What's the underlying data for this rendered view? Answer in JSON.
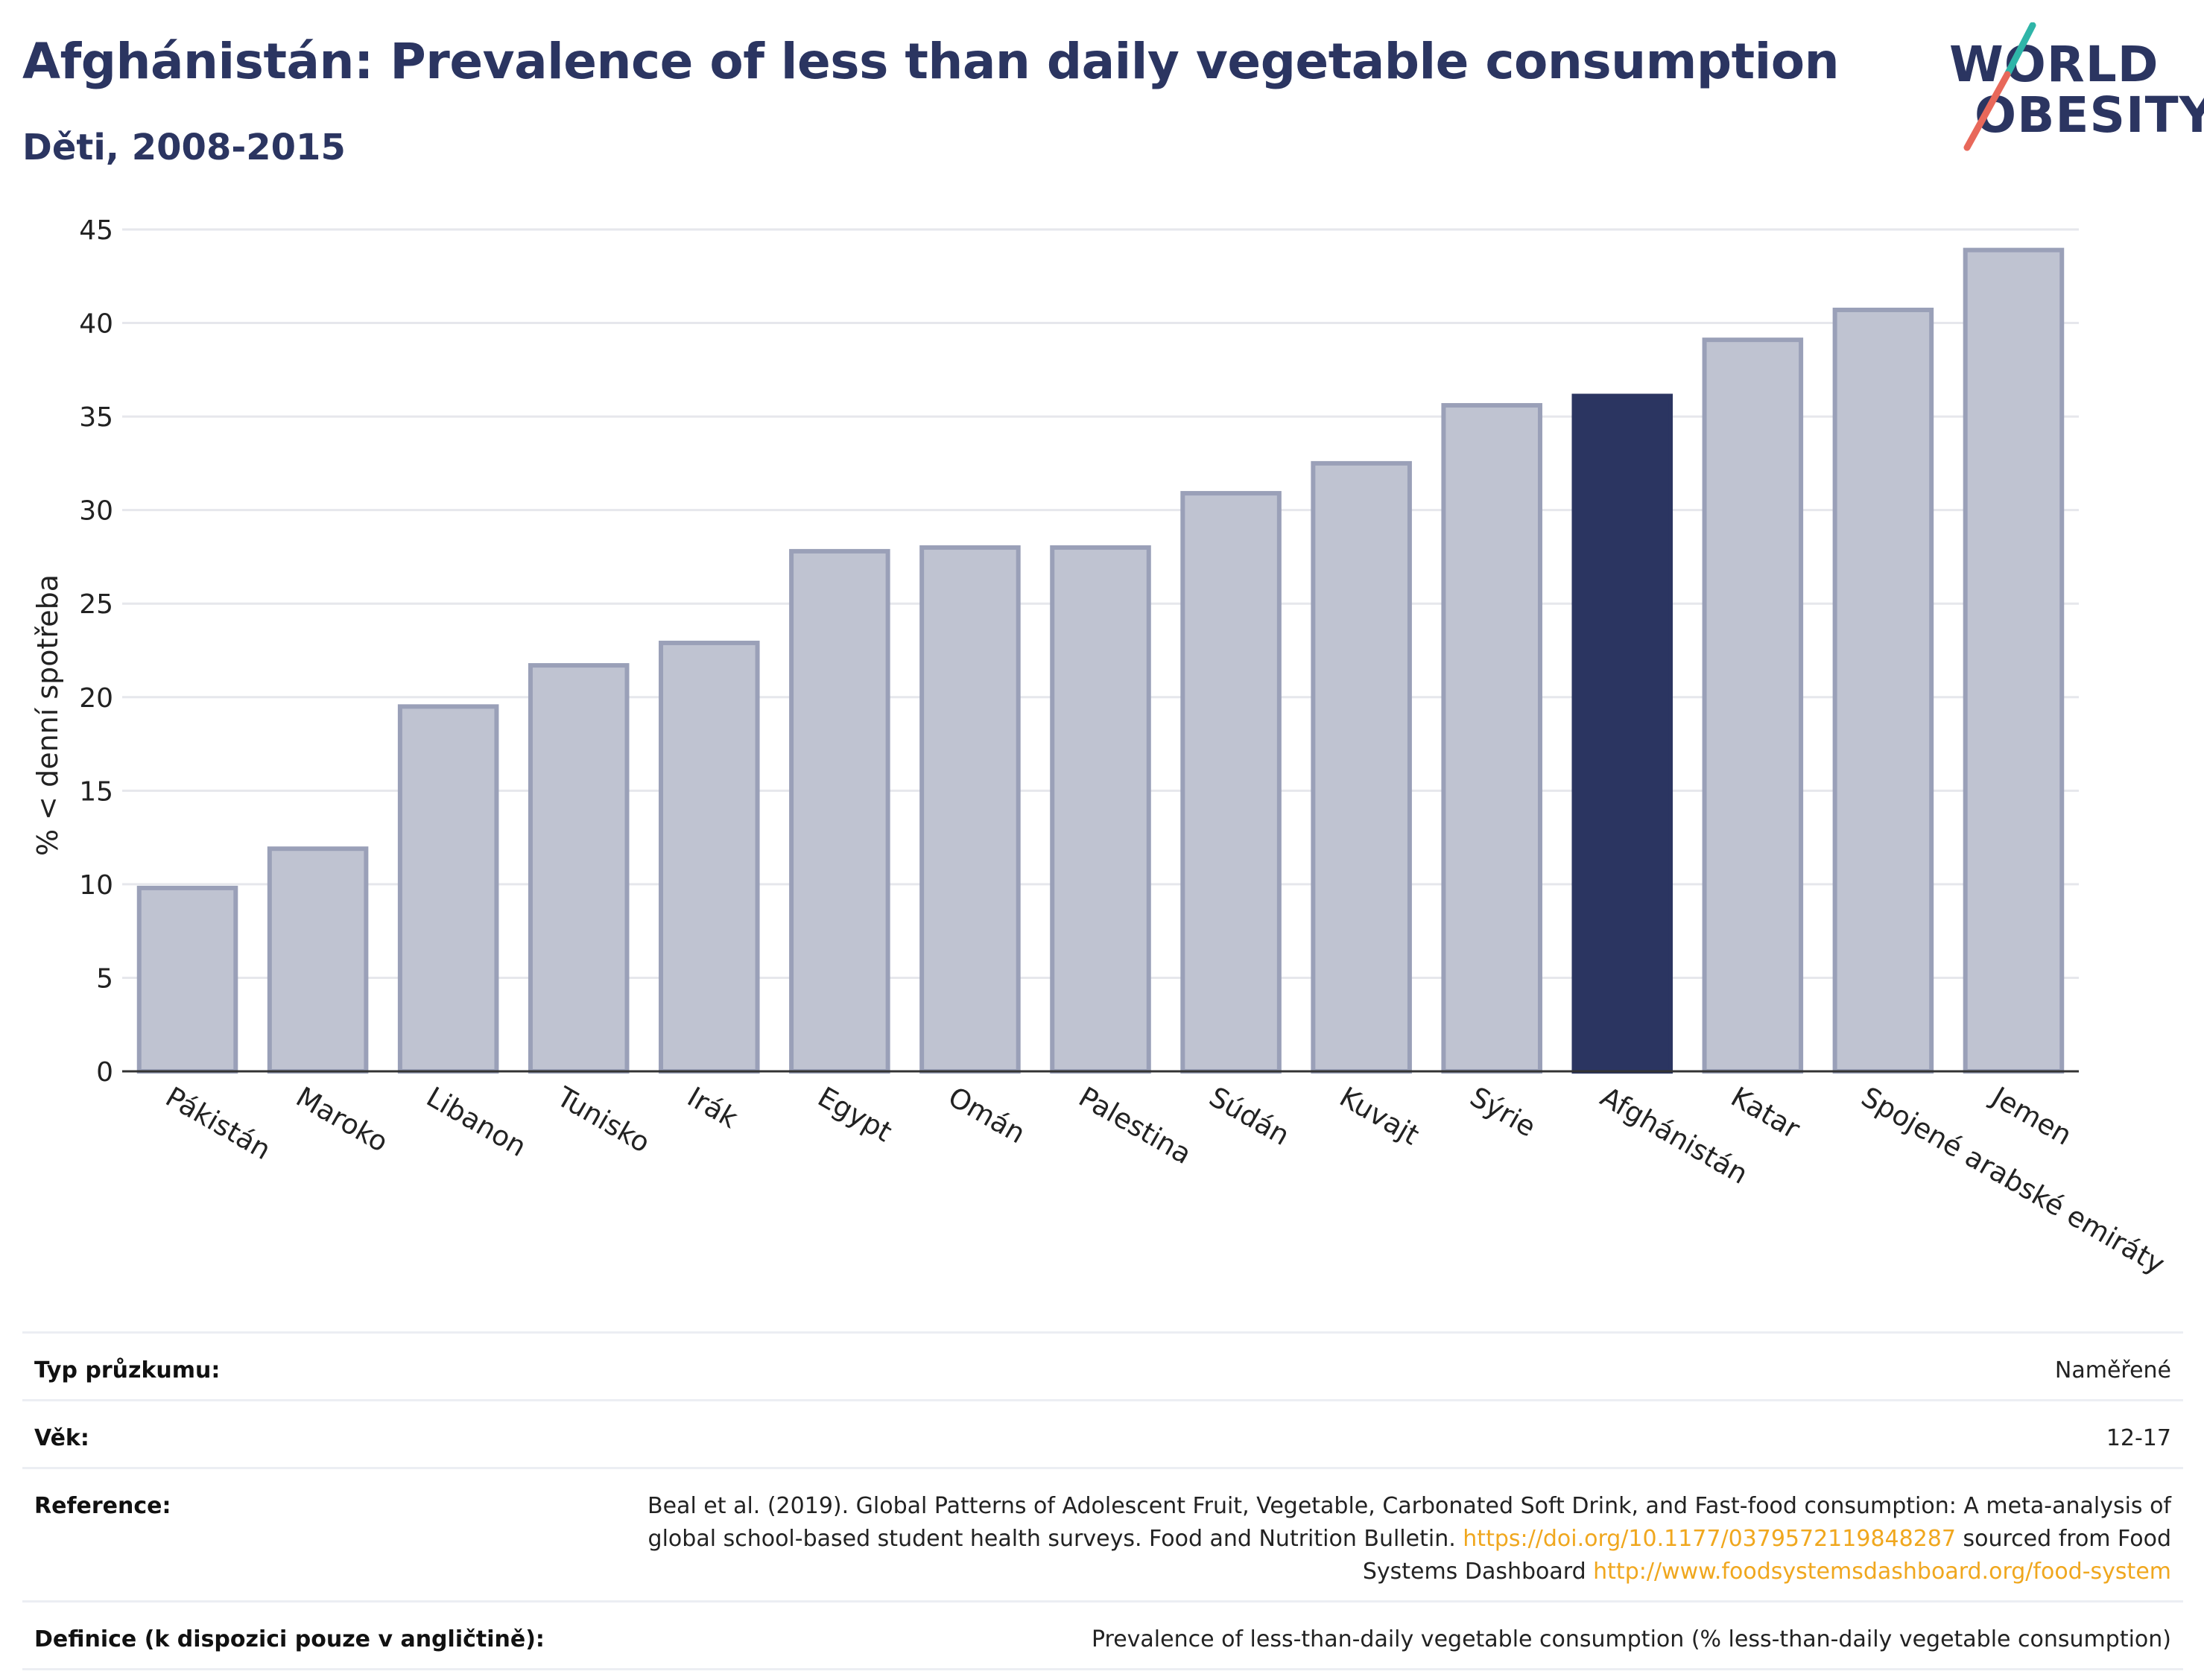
{
  "title": "Afghánistán: Prevalence of less than daily vegetable consumption",
  "subtitle": "Děti, 2008-2015",
  "logo": {
    "line1": "WORLD",
    "line2": "OBESITY"
  },
  "colors": {
    "highlight": "#2b3561",
    "bar": "#bfc3d1",
    "bar_edge": "#9aa0b8",
    "slash_teal": "#2fb5a8",
    "slash_coral": "#e8685a",
    "link": "#f0a71e"
  },
  "chart_data": {
    "type": "bar",
    "ylabel": "% < denní spotřeba",
    "ylim": [
      0,
      45
    ],
    "yticks": [
      0,
      5,
      10,
      15,
      20,
      25,
      30,
      35,
      40,
      45
    ],
    "grid": true,
    "categories": [
      "Pákistán",
      "Maroko",
      "Libanon",
      "Tunisko",
      "Irák",
      "Egypt",
      "Omán",
      "Palestina",
      "Súdán",
      "Kuvajt",
      "Sýrie",
      "Afghánistán",
      "Katar",
      "Spojené arabské emiráty",
      "Jemen"
    ],
    "values": [
      9.8,
      11.9,
      19.5,
      21.7,
      22.9,
      27.8,
      28.0,
      28.0,
      30.9,
      32.5,
      35.6,
      36.1,
      39.1,
      40.7,
      43.9
    ],
    "highlight": "Afghánistán"
  },
  "meta": {
    "survey_key": "Typ průzkumu:",
    "survey_val": "Naměřené",
    "age_key": "Věk:",
    "age_val": "12-17",
    "ref_key": "Reference:",
    "ref_text1": "Beal et al. (2019). Global Patterns of Adolescent Fruit, Vegetable, Carbonated Soft Drink, and Fast-food consumption: A meta-analysis of global school-based student health surveys. Food and Nutrition Bulletin. ",
    "ref_link1": "https://doi.org/10.1177/0379572119848287",
    "ref_text2": " sourced from Food Systems Dashboard ",
    "ref_link2": "http://www.foodsystemsdashboard.org/food-system",
    "def_key": "Definice (k dispozici pouze v angličtině):",
    "def_val": "Prevalence of less-than-daily vegetable consumption (% less-than-daily vegetable consumption)"
  }
}
